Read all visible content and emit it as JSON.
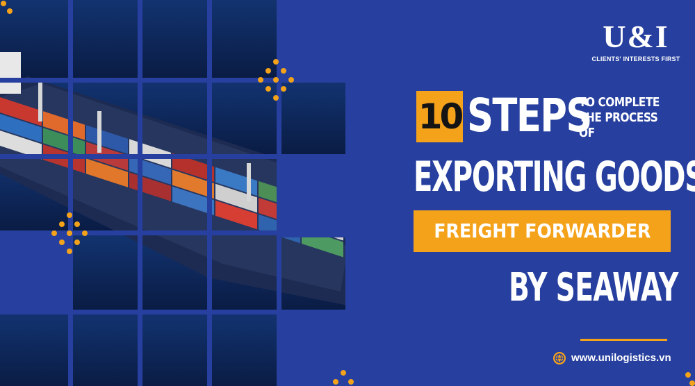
{
  "logo": {
    "mark": "U&I",
    "tagline": "CLIENTS' INTERESTS FIRST"
  },
  "headline": {
    "number": "10",
    "steps": "STEPS",
    "sub_line1": "TO COMPLETE",
    "sub_line2": "THE PROCESS",
    "sub_line3": "OF",
    "main": "EXPORTING GOODS",
    "highlight": "FREIGHT FORWARDER",
    "tail": "BY SEAWAY"
  },
  "footer": {
    "website": "www.unilogistics.vn",
    "icon": "globe-icon"
  },
  "colors": {
    "background": "#27409f",
    "accent": "#f5a21b",
    "text": "#ffffff",
    "sea": "#0b1f4c"
  }
}
